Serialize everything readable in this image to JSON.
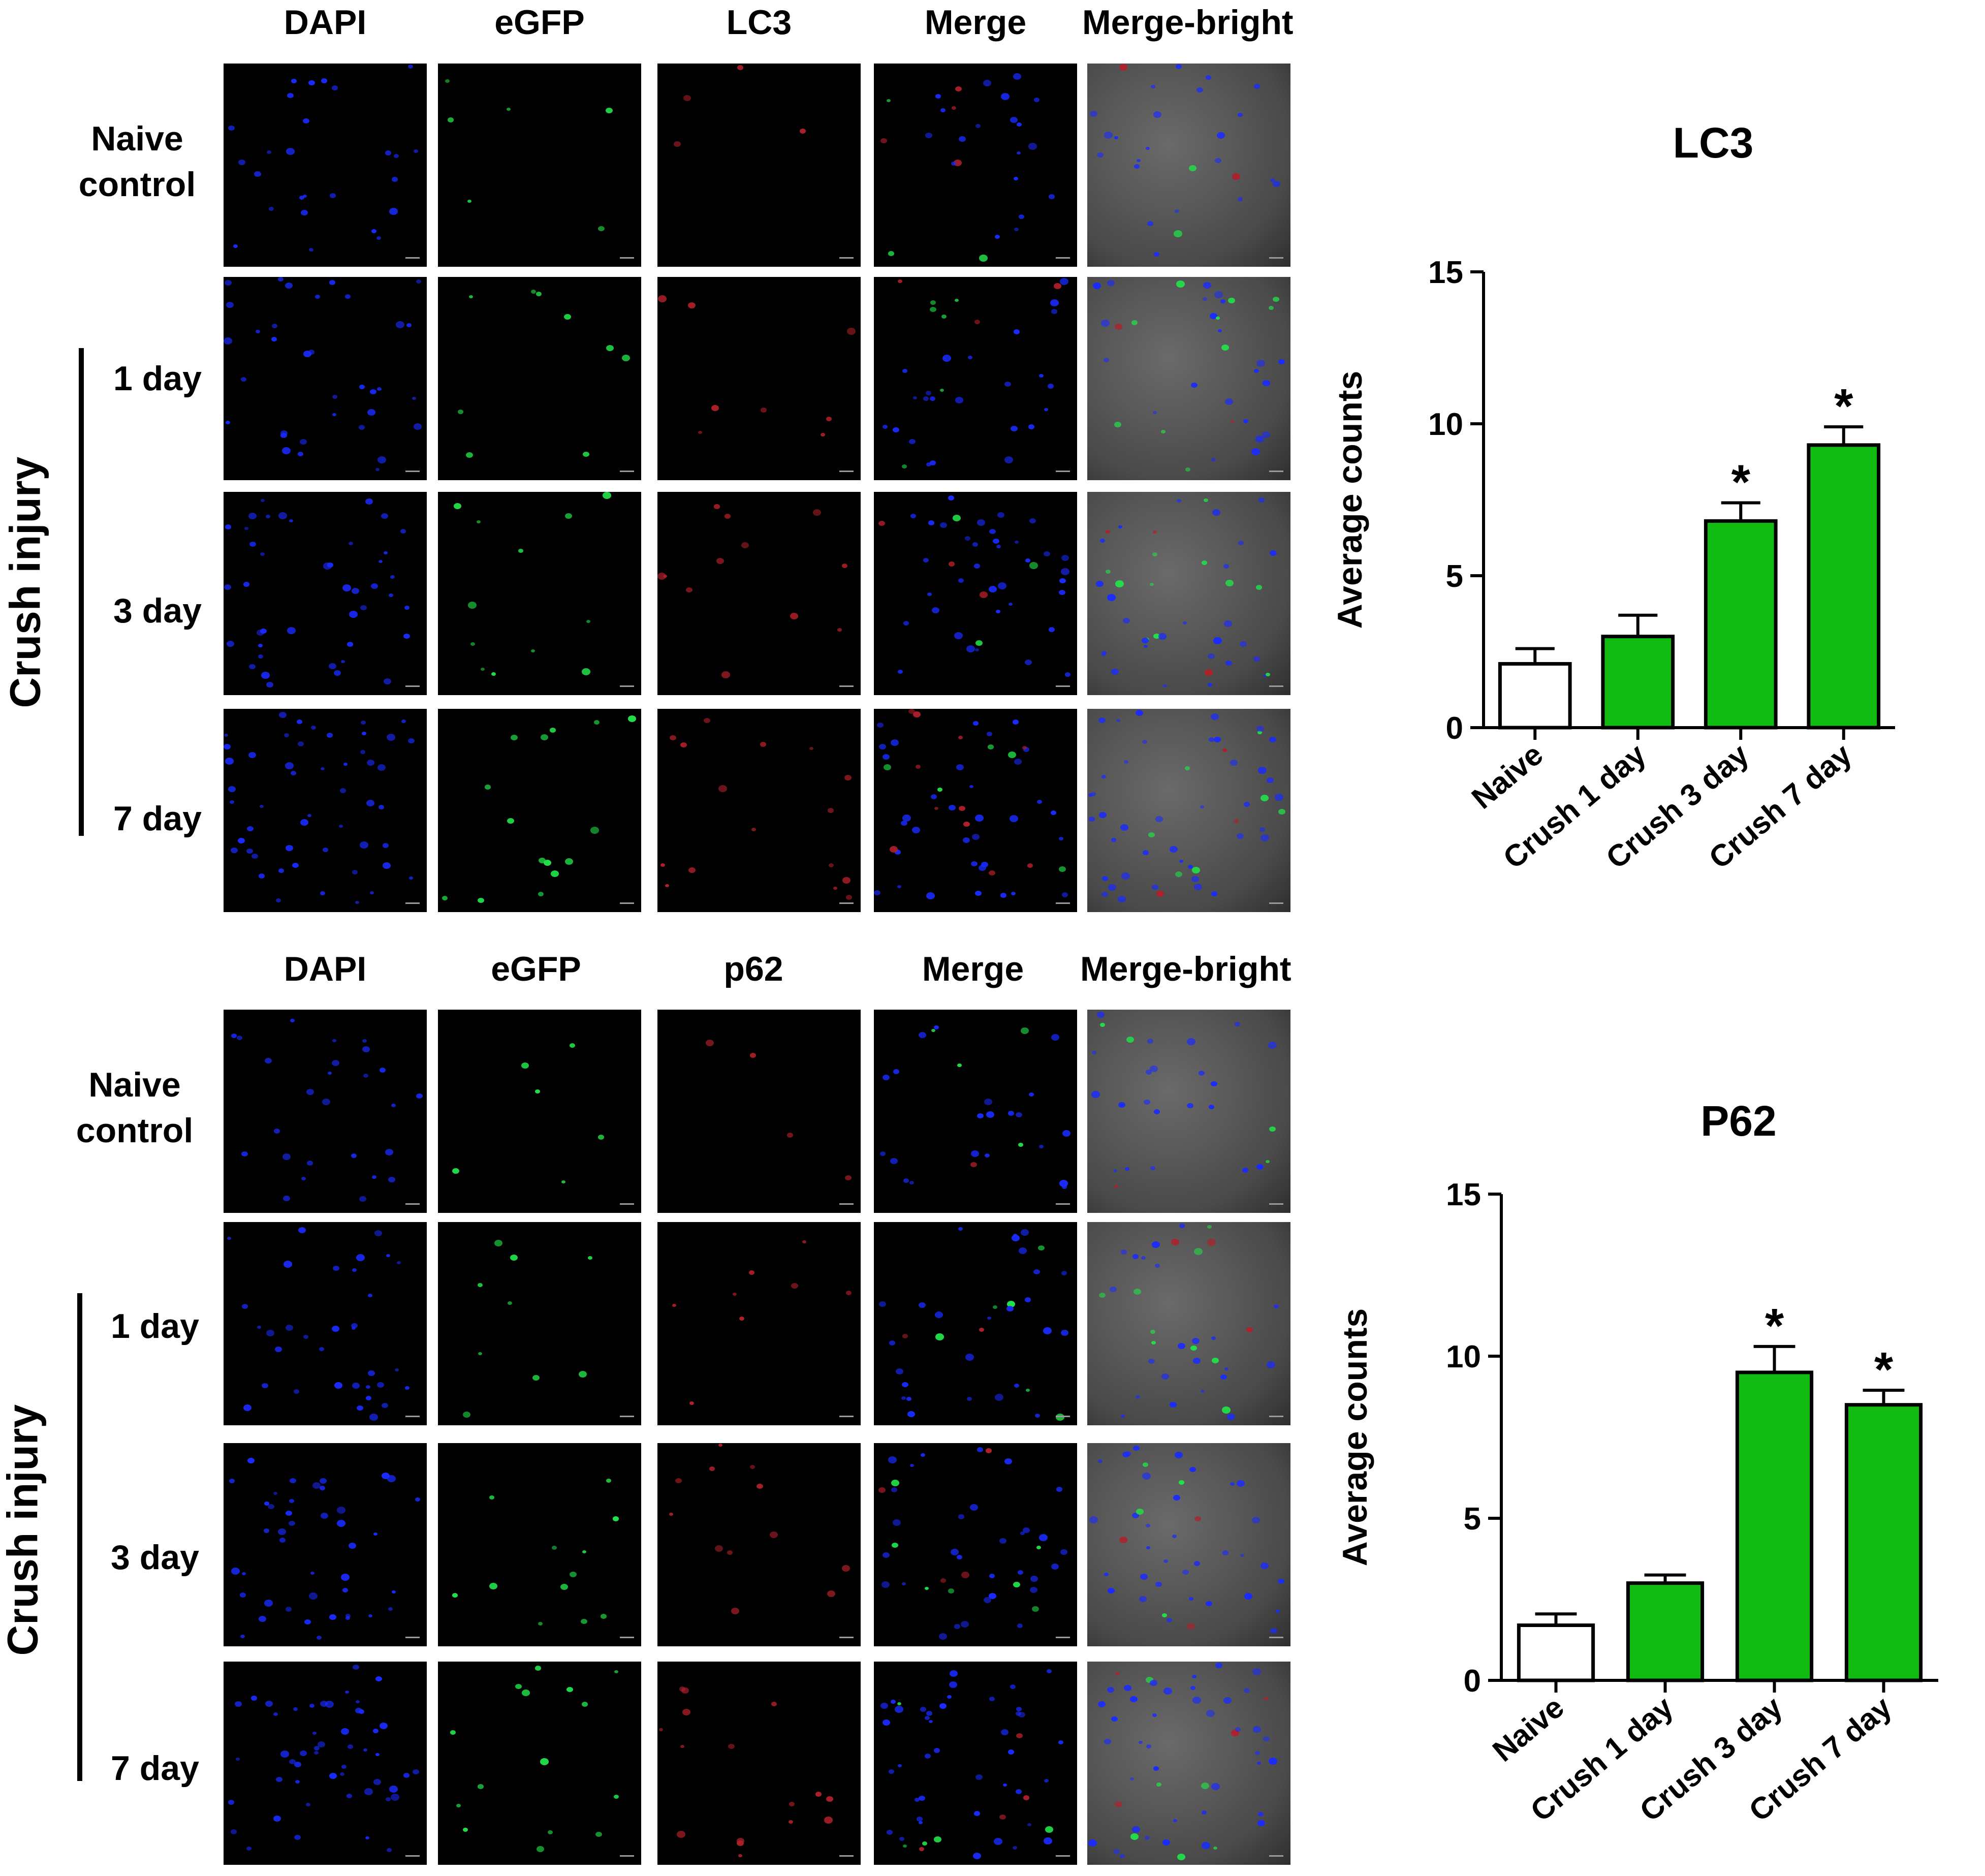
{
  "figure": {
    "top_block": {
      "columns": [
        "DAPI",
        "eGFP",
        "LC3",
        "Merge",
        "Merge-bright"
      ],
      "rows": [
        "Naive control",
        "1 day",
        "3 day",
        "7 day"
      ],
      "group_label": "Crush injury"
    },
    "bottom_block": {
      "columns": [
        "DAPI",
        "eGFP",
        "p62",
        "Merge",
        "Merge-bright"
      ],
      "rows": [
        "Naive control",
        "1 day",
        "3 day",
        "7 day"
      ],
      "group_label": "Crush injury"
    },
    "panel_colors": {
      "dapi": "#1a2bff",
      "egfp": "#22e04a",
      "marker": "#b0202a",
      "bright_bg": "#4a4a4a"
    }
  },
  "chart_data": [
    {
      "type": "bar",
      "title": "LC3",
      "ylabel": "Average counts",
      "xlabel": "",
      "categories": [
        "Naive",
        "Crush 1 day",
        "Crush 3 day",
        "Crush 7 day"
      ],
      "values": [
        2.1,
        3.0,
        6.8,
        9.3
      ],
      "errors": [
        0.5,
        0.7,
        0.6,
        0.6
      ],
      "significance": [
        "",
        "",
        "*",
        "*"
      ],
      "bar_colors": [
        "#ffffff",
        "#11bb11",
        "#11bb11",
        "#11bb11"
      ],
      "ylim": [
        0,
        15
      ],
      "yticks": [
        0,
        5,
        10,
        15
      ],
      "grid": false
    },
    {
      "type": "bar",
      "title": "P62",
      "ylabel": "Average counts",
      "xlabel": "",
      "categories": [
        "Naive",
        "Crush 1 day",
        "Crush 3 day",
        "Crush 7 day"
      ],
      "values": [
        1.7,
        3.0,
        9.5,
        8.5
      ],
      "errors": [
        0.35,
        0.25,
        0.8,
        0.45
      ],
      "significance": [
        "",
        "",
        "*",
        "*"
      ],
      "bar_colors": [
        "#ffffff",
        "#11bb11",
        "#11bb11",
        "#11bb11"
      ],
      "ylim": [
        0,
        15
      ],
      "yticks": [
        0,
        5,
        10,
        15
      ],
      "grid": false
    }
  ]
}
